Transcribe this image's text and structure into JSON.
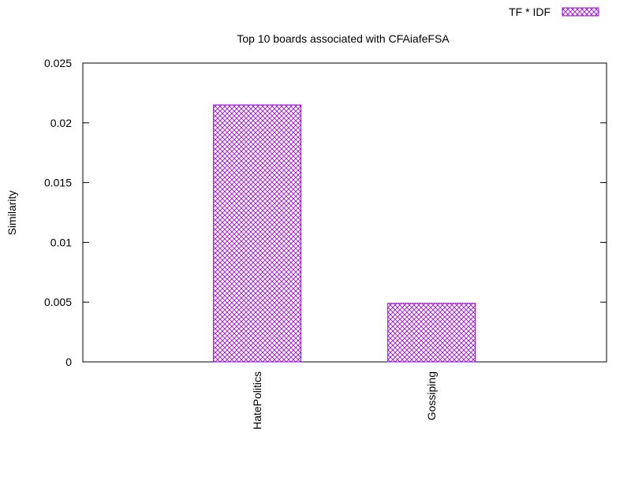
{
  "chart_data": {
    "type": "bar",
    "title": "Top 10 boards associated with CFAiafeFSA",
    "xlabel": "",
    "ylabel": "Similarity",
    "categories": [
      "HatePolitics",
      "Gossiping"
    ],
    "series": [
      {
        "name": "TF * IDF",
        "values": [
          0.0215,
          0.0049
        ]
      }
    ],
    "ylim": [
      0,
      0.025
    ],
    "yticks": [
      "0",
      "0.005",
      "0.01",
      "0.015",
      "0.02",
      "0.025"
    ],
    "ytick_values": [
      0,
      0.005,
      0.01,
      0.015,
      0.02,
      0.025
    ],
    "legend_position": "top-right",
    "grid": false,
    "fill_pattern": "crosshatch",
    "series_color": "#9400d3"
  }
}
